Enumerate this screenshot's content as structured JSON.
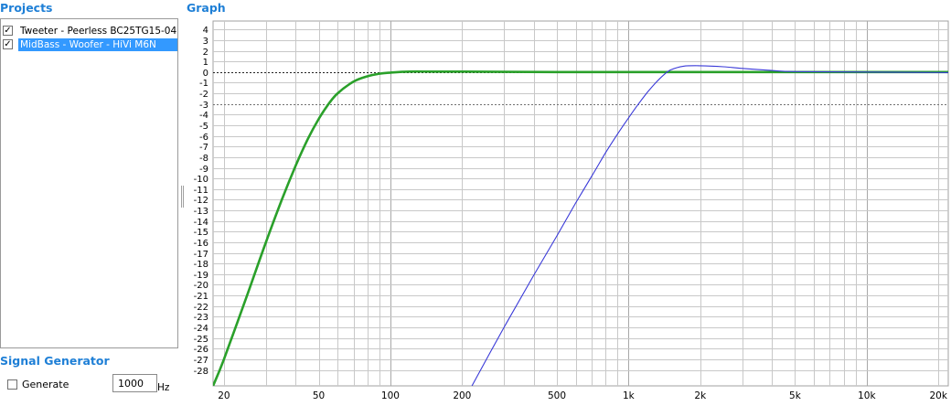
{
  "sidebar": {
    "projects_title": "Projects",
    "projects": [
      {
        "label": "Tweeter - Peerless BC25TG15-04",
        "checked": true,
        "selected": false
      },
      {
        "label": "MidBass - Woofer - HiVi M6N",
        "checked": true,
        "selected": true
      }
    ],
    "signal_generator_title": "Signal Generator",
    "generate_label": "Generate",
    "generate_checked": false,
    "frequency_value": "1000",
    "frequency_unit": "Hz"
  },
  "graph": {
    "title": "Graph"
  },
  "chart_data": {
    "type": "line",
    "x_scale": "log",
    "xlim": [
      18,
      22000
    ],
    "ylim": [
      -29.5,
      4.8
    ],
    "x_tick_values": [
      20,
      50,
      100,
      200,
      500,
      1000,
      2000,
      5000,
      10000,
      20000
    ],
    "x_tick_labels": [
      "20",
      "50",
      "100",
      "200",
      "500",
      "1k",
      "2k",
      "5k",
      "10k",
      "20k"
    ],
    "y_ticks": [
      4,
      3,
      2,
      1,
      0,
      -1,
      -2,
      -3,
      -4,
      -5,
      -6,
      -7,
      -8,
      -9,
      -10,
      -11,
      -12,
      -13,
      -14,
      -15,
      -16,
      -17,
      -18,
      -19,
      -20,
      -21,
      -22,
      -23,
      -24,
      -25,
      -26,
      -27,
      -28
    ],
    "reference_lines": [
      0,
      -3
    ],
    "grid": true,
    "series": [
      {
        "color": "#2aa02a",
        "x": [
          18,
          20,
          25,
          30,
          35,
          40,
          45,
          50,
          55,
          60,
          70,
          80,
          90,
          100,
          120,
          150,
          200,
          300,
          500,
          1000,
          2000,
          5000,
          10000,
          22000
        ],
        "y": [
          -29.5,
          -27,
          -21,
          -16,
          -12,
          -8.8,
          -6.3,
          -4.4,
          -3.0,
          -2.0,
          -0.9,
          -0.4,
          -0.15,
          -0.05,
          0.05,
          0.05,
          0.05,
          0.02,
          0,
          0,
          0,
          0,
          0,
          0
        ]
      },
      {
        "color": "#3a3ad8",
        "x": [
          220,
          300,
          400,
          500,
          600,
          700,
          800,
          900,
          1000,
          1100,
          1200,
          1300,
          1400,
          1500,
          1700,
          2000,
          2500,
          3000,
          4000,
          5000,
          10000,
          22000
        ],
        "y": [
          -29.5,
          -24,
          -19.1,
          -15.4,
          -12.3,
          -9.8,
          -7.6,
          -5.8,
          -4.3,
          -3.0,
          -1.9,
          -1.0,
          -0.3,
          0.2,
          0.55,
          0.6,
          0.5,
          0.35,
          0.15,
          0.05,
          0,
          -0.05
        ]
      }
    ]
  }
}
